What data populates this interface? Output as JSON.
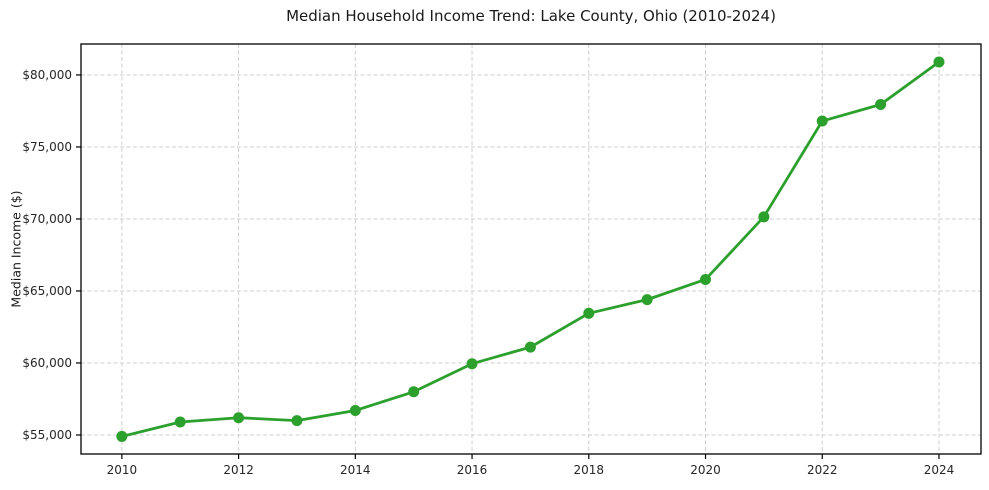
{
  "chart_data": {
    "type": "line",
    "title": "Median Household Income Trend: Lake County, Ohio (2010-2024)",
    "xlabel": "",
    "ylabel": "Median Income ($)",
    "series": [
      {
        "name": "Median Household Income",
        "x": [
          2010,
          2011,
          2012,
          2013,
          2014,
          2015,
          2016,
          2017,
          2018,
          2019,
          2020,
          2021,
          2022,
          2023,
          2024
        ],
        "values": [
          54900,
          55900,
          56200,
          56000,
          56700,
          58000,
          59950,
          61100,
          63450,
          64400,
          65800,
          70150,
          76800,
          77950,
          80900
        ]
      }
    ],
    "xlim": [
      2009.3,
      2024.72
    ],
    "ylim": [
      53680,
      82150
    ],
    "x_ticks": {
      "values": [
        2010,
        2012,
        2014,
        2016,
        2018,
        2020,
        2022,
        2024
      ],
      "labels": [
        "2010",
        "2012",
        "2014",
        "2016",
        "2018",
        "2020",
        "2022",
        "2024"
      ]
    },
    "y_ticks": {
      "values": [
        55000,
        60000,
        65000,
        70000,
        75000,
        80000
      ],
      "labels": [
        "$55,000",
        "$60,000",
        "$65,000",
        "$70,000",
        "$75,000",
        "$80,000"
      ]
    },
    "grid": "dashed-both",
    "legend": "none",
    "colors": {
      "line": "#2ca02c",
      "marker": "#2ca02c",
      "grid": "#cfcfcf",
      "spine": "#000000",
      "tick_label": "#262626",
      "background": "#ffffff"
    },
    "marker_radius": 5.5,
    "line_width": 2.8
  }
}
